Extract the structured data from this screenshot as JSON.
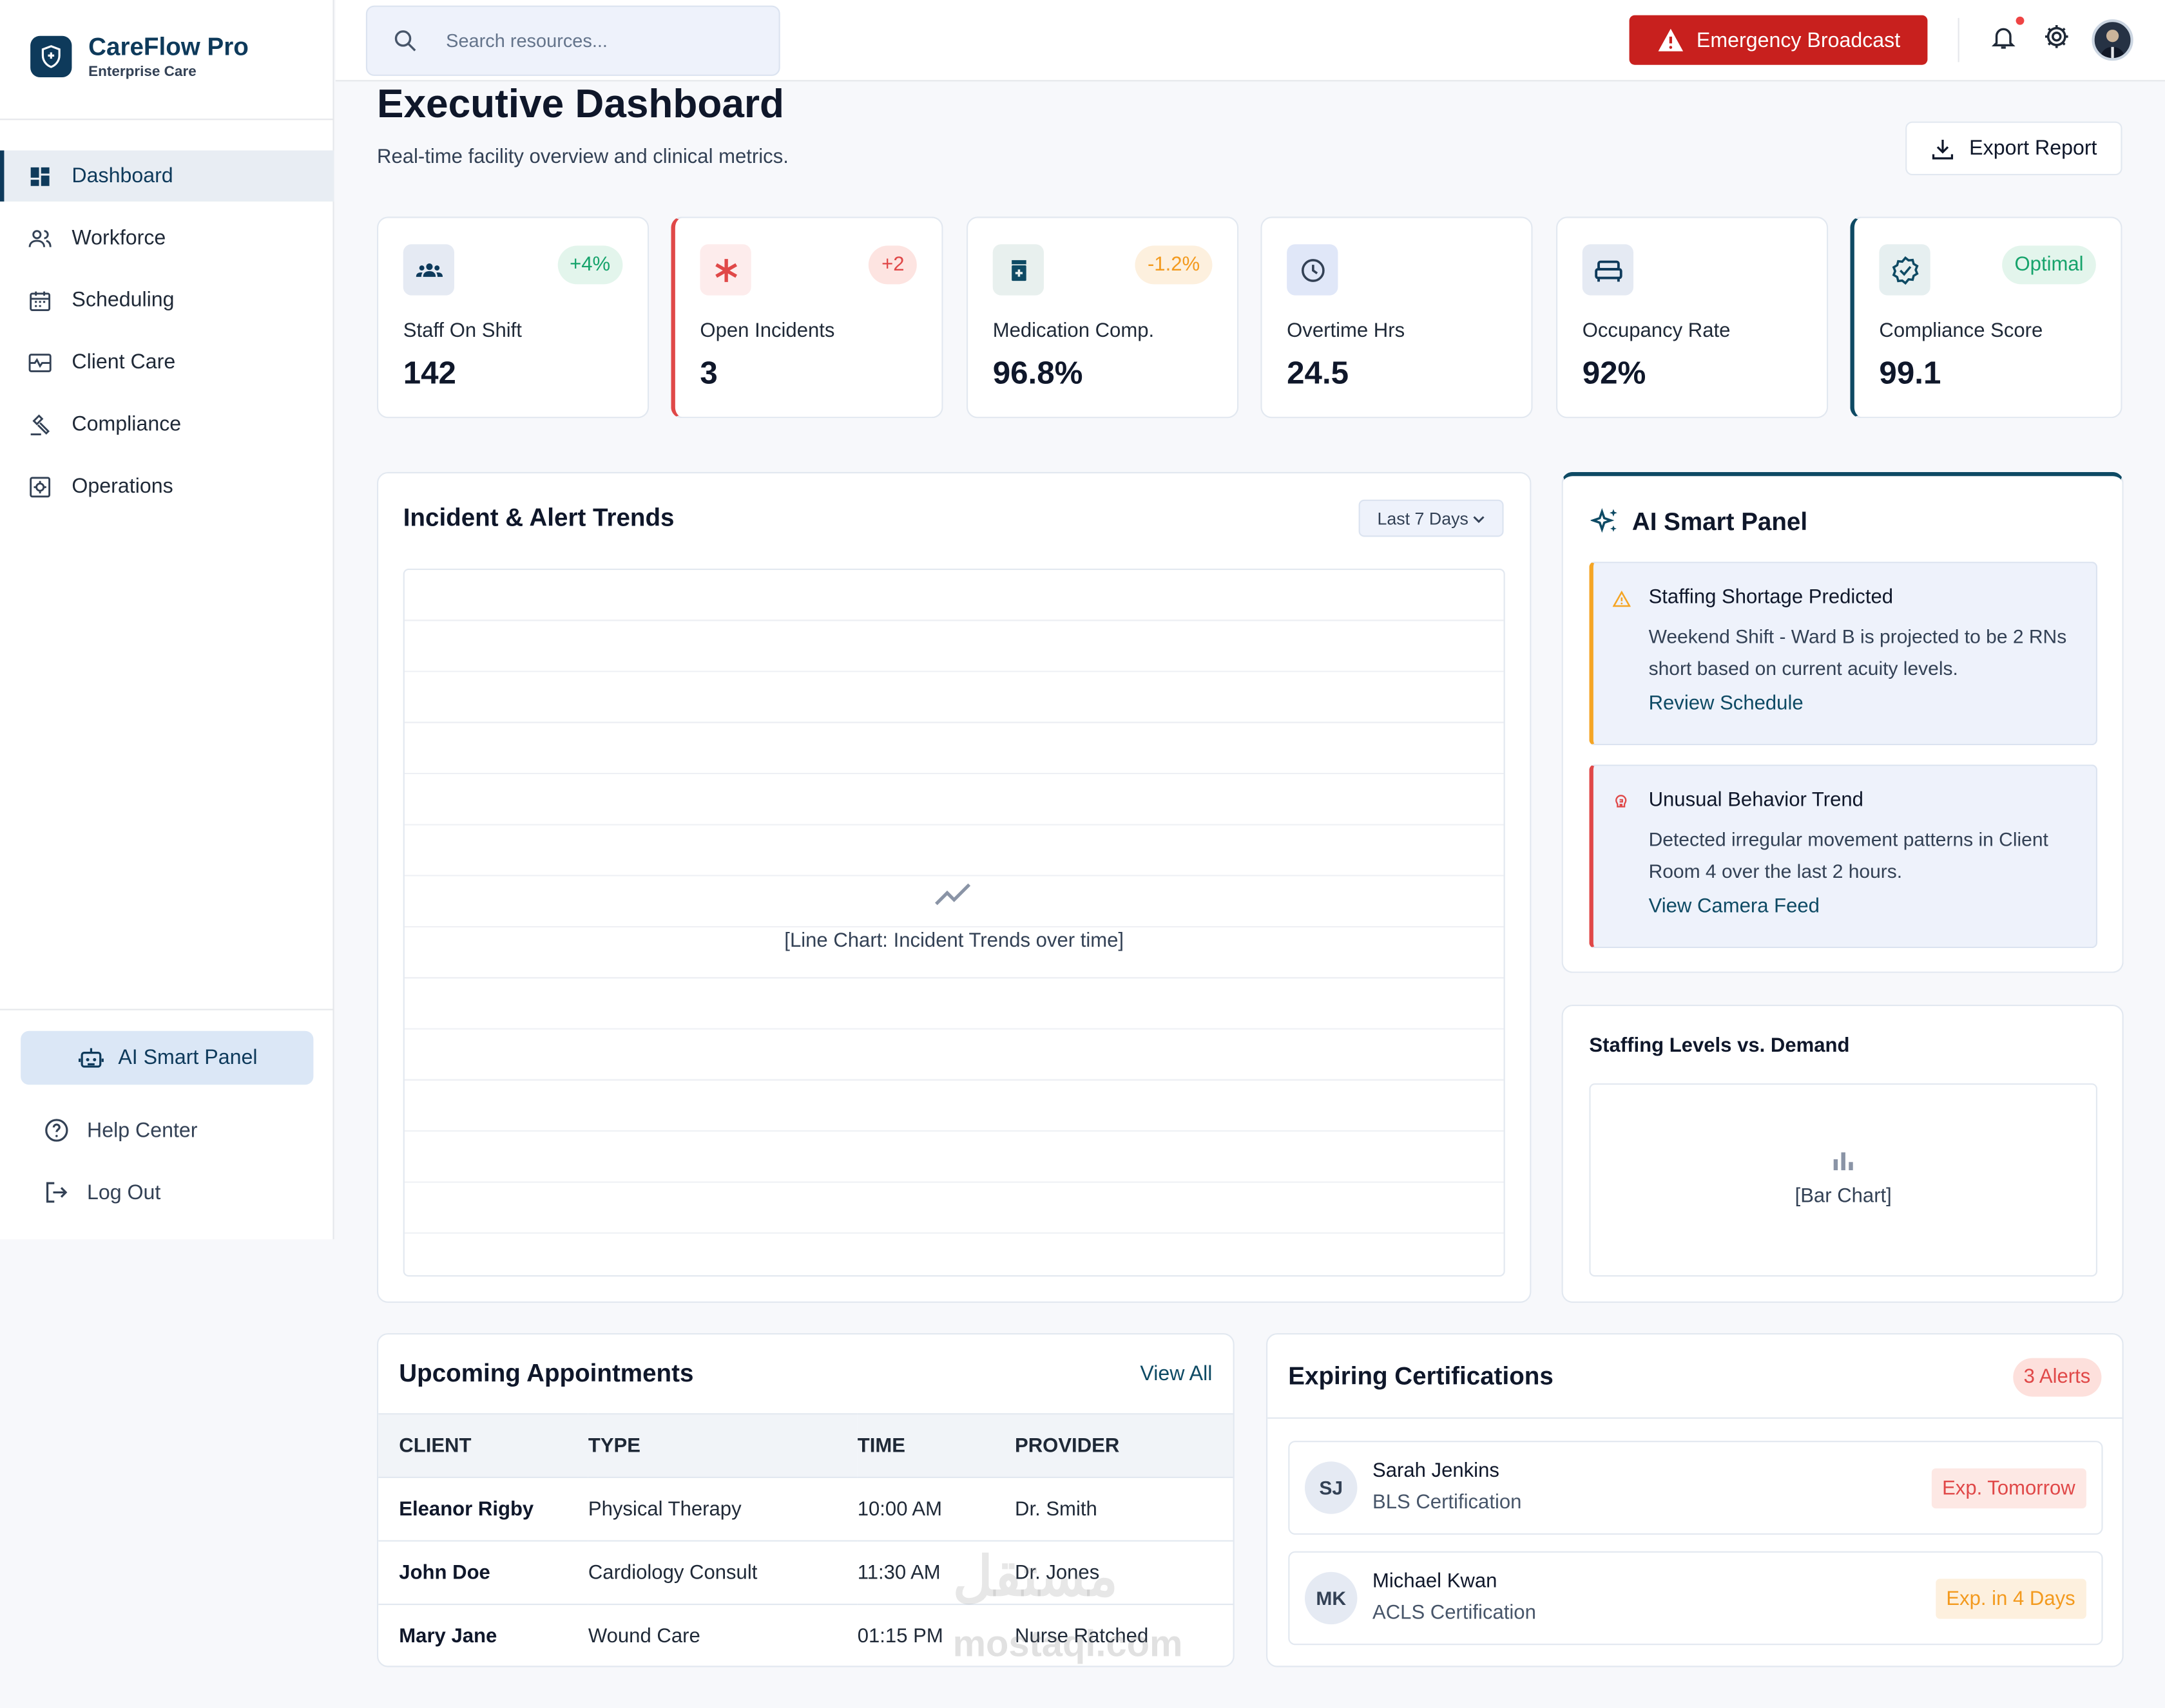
{
  "brand": {
    "name": "CareFlow Pro",
    "subtitle": "Enterprise Care"
  },
  "sidebar": {
    "items": [
      {
        "label": "Dashboard",
        "icon": "dashboard-icon",
        "active": true
      },
      {
        "label": "Workforce",
        "icon": "people-icon"
      },
      {
        "label": "Scheduling",
        "icon": "calendar-icon"
      },
      {
        "label": "Client Care",
        "icon": "monitor-heart-icon"
      },
      {
        "label": "Compliance",
        "icon": "gavel-icon"
      },
      {
        "label": "Operations",
        "icon": "settings-box-icon"
      }
    ],
    "ai_button": "AI Smart Panel",
    "help": "Help Center",
    "logout": "Log Out"
  },
  "topbar": {
    "search_placeholder": "Search resources...",
    "emergency": "Emergency Broadcast"
  },
  "header": {
    "title": "Executive Dashboard",
    "subtitle": "Real-time facility overview and clinical metrics.",
    "export": "Export Report"
  },
  "kpis": [
    {
      "label": "Staff On Shift",
      "value": "142",
      "badge": "+4%",
      "badge_color": "#16a36b",
      "icon": "groups-icon"
    },
    {
      "label": "Open Incidents",
      "value": "3",
      "badge": "+2",
      "badge_color": "#e04848",
      "icon": "asterisk-icon"
    },
    {
      "label": "Medication Comp.",
      "value": "96.8%",
      "badge": "-1.2%",
      "badge_color": "#f39a1e",
      "icon": "medication-icon"
    },
    {
      "label": "Overtime Hrs",
      "value": "24.5",
      "badge": "",
      "icon": "clock-icon"
    },
    {
      "label": "Occupancy Rate",
      "value": "92%",
      "badge": "",
      "icon": "bed-icon"
    },
    {
      "label": "Compliance Score",
      "value": "99.1",
      "badge": "Optimal",
      "badge_color": "#16a36b",
      "icon": "verified-icon"
    }
  ],
  "incident_chart": {
    "title": "Incident & Alert Trends",
    "range": "Last 7 Days",
    "placeholder": "[Line Chart: Incident Trends over time]"
  },
  "ai_panel": {
    "title": "AI Smart Panel",
    "alerts": [
      {
        "title": "Staffing Shortage Predicted",
        "body": "Weekend Shift - Ward B is projected to be 2 RNs short based on current acuity levels.",
        "link": "Review Schedule"
      },
      {
        "title": "Unusual Behavior Trend",
        "body": "Detected irregular movement patterns in Client Room 4 over the last 2 hours.",
        "link": "View Camera Feed"
      }
    ]
  },
  "staffing": {
    "title": "Staffing Levels vs. Demand",
    "placeholder": "[Bar Chart]"
  },
  "appointments": {
    "title": "Upcoming Appointments",
    "view_all": "View All",
    "columns": [
      "CLIENT",
      "TYPE",
      "TIME",
      "PROVIDER"
    ],
    "rows": [
      [
        "Eleanor Rigby",
        "Physical Therapy",
        "10:00 AM",
        "Dr. Smith"
      ],
      [
        "John Doe",
        "Cardiology Consult",
        "11:30 AM",
        "Dr. Jones"
      ],
      [
        "Mary Jane",
        "Wound Care",
        "01:15 PM",
        "Nurse Ratched"
      ]
    ]
  },
  "certifications": {
    "title": "Expiring Certifications",
    "badge": "3 Alerts",
    "items": [
      {
        "initials": "SJ",
        "name": "Sarah Jenkins",
        "cert": "BLS Certification",
        "expiry": "Exp. Tomorrow",
        "color": "#e04848"
      },
      {
        "initials": "MK",
        "name": "Michael Kwan",
        "cert": "ACLS Certification",
        "expiry": "Exp. in 4 Days",
        "color": "#f39a1e"
      }
    ]
  },
  "watermark": {
    "arabic": "مستقل",
    "latin": "mostaql.com"
  }
}
